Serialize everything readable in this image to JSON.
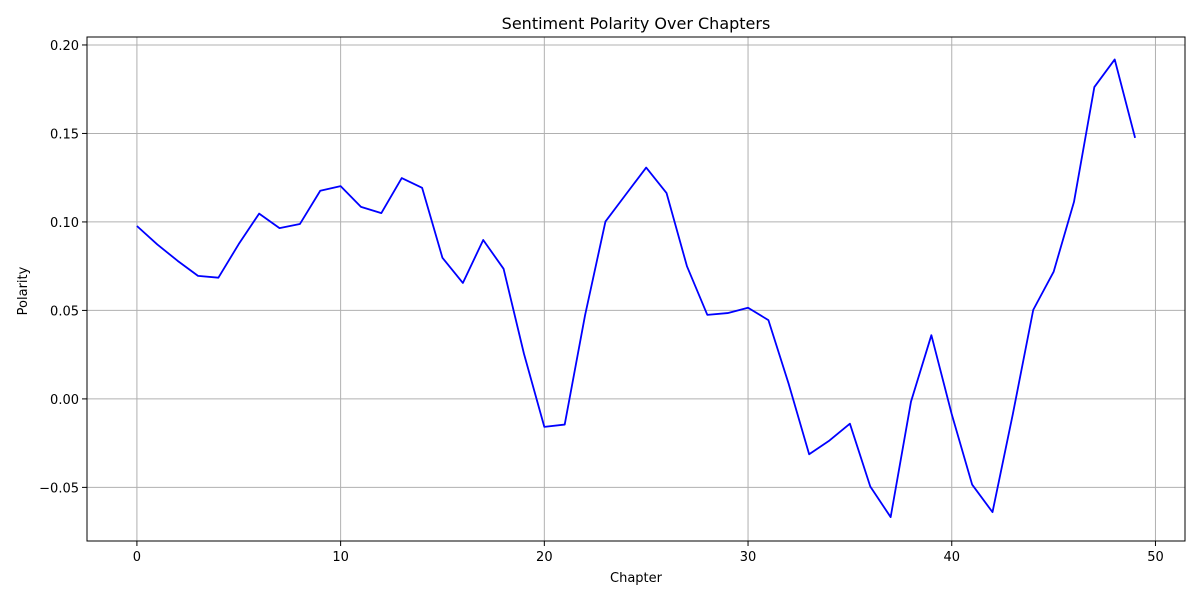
{
  "chart_data": {
    "type": "line",
    "title": "Sentiment Polarity Over Chapters",
    "xlabel": "Chapter",
    "ylabel": "Polarity",
    "xlim": [
      -2.45,
      51.45
    ],
    "ylim": [
      -0.0803,
      0.2045
    ],
    "xticks": [
      0,
      10,
      20,
      30,
      40,
      50
    ],
    "yticks": [
      -0.05,
      0.0,
      0.05,
      0.1,
      0.15,
      0.2
    ],
    "ytick_labels": [
      "−0.05",
      "0.00",
      "0.05",
      "0.10",
      "0.15",
      "0.20"
    ],
    "grid": true,
    "series": [
      {
        "color": "#0000ff",
        "x": [
          0,
          1,
          2,
          3,
          4,
          5,
          6,
          7,
          8,
          9,
          10,
          11,
          12,
          13,
          14,
          15,
          16,
          17,
          18,
          19,
          20,
          21,
          22,
          23,
          24,
          25,
          26,
          27,
          28,
          29,
          30,
          31,
          32,
          33,
          34,
          35,
          36,
          37,
          38,
          39,
          40,
          41,
          42,
          43,
          44,
          45,
          46,
          47,
          48,
          49
        ],
        "values": [
          0.0977,
          0.0873,
          0.078,
          0.0695,
          0.0685,
          0.0875,
          0.1047,
          0.0965,
          0.0988,
          0.1176,
          0.1202,
          0.1085,
          0.105,
          0.1248,
          0.1193,
          0.0797,
          0.0655,
          0.0898,
          0.0735,
          0.0255,
          -0.0158,
          -0.0145,
          0.0473,
          0.1002,
          0.1155,
          0.1307,
          0.1163,
          0.075,
          0.0475,
          0.0485,
          0.0515,
          0.0445,
          0.0083,
          -0.0313,
          -0.0235,
          -0.014,
          -0.0495,
          -0.0668,
          -0.0015,
          0.036,
          -0.0087,
          -0.0484,
          -0.064,
          -0.0085,
          0.0503,
          0.0718,
          0.1113,
          0.1762,
          0.1918,
          0.1475
        ]
      }
    ]
  }
}
